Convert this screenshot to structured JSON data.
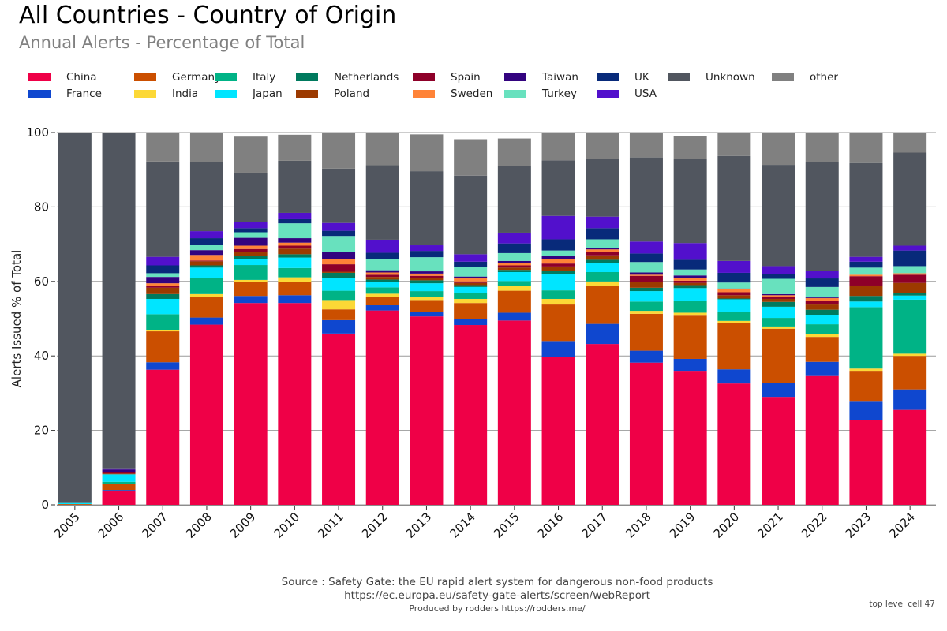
{
  "header": {
    "title": "All Countries - Country of Origin",
    "subtitle": "Annual Alerts - Percentage of Total"
  },
  "footer": {
    "source": "Source : Safety Gate: the EU rapid alert system for dangerous non-food products",
    "url": "https://ec.europa.eu/safety-gate-alerts/screen/webReport",
    "produced_by": "Produced by rodders https://rodders.me/",
    "cell_label": "top level cell 47"
  },
  "chart_data": {
    "type": "bar",
    "stacked": true,
    "title": "All Countries - Country of Origin",
    "subtitle": "Annual Alerts - Percentage of Total",
    "xlabel": "",
    "ylabel": "Alerts Issued % of Total",
    "ylim": [
      0,
      100
    ],
    "yticks": [
      "0",
      "20",
      "40",
      "60",
      "80",
      "100"
    ],
    "grid": true,
    "legend_position": "top",
    "categories": [
      "2005",
      "2006",
      "2007",
      "2008",
      "2009",
      "2010",
      "2011",
      "2012",
      "2013",
      "2014",
      "2015",
      "2016",
      "2017",
      "2018",
      "2019",
      "2020",
      "2021",
      "2022",
      "2023",
      "2024"
    ],
    "series": [
      {
        "name": "China",
        "color": "#ef0047",
        "values": [
          0,
          3.6,
          36.3,
          48.4,
          54.2,
          54.2,
          46.0,
          52.2,
          50.6,
          48.3,
          49.5,
          39.7,
          43.2,
          38.2,
          36.0,
          32.6,
          29.0,
          34.6,
          22.8,
          25.5
        ]
      },
      {
        "name": "France",
        "color": "#0f47cf",
        "values": [
          0,
          0.4,
          2.0,
          1.9,
          1.9,
          2.1,
          3.6,
          1.4,
          1.1,
          1.5,
          2.1,
          4.3,
          5.4,
          3.2,
          3.2,
          3.8,
          3.8,
          3.8,
          4.9,
          5.5
        ]
      },
      {
        "name": "Germany",
        "color": "#cb4f00",
        "values": [
          0.2,
          1.6,
          8.3,
          5.5,
          3.7,
          3.6,
          2.9,
          2.2,
          3.3,
          4.4,
          5.9,
          9.8,
          10.3,
          9.9,
          11.6,
          12.4,
          14.5,
          6.7,
          8.3,
          9.0
        ]
      },
      {
        "name": "India",
        "color": "#fcd836",
        "values": [
          0,
          0,
          0.3,
          0.8,
          0.6,
          1.2,
          2.5,
          0.9,
          0.9,
          1.1,
          1.3,
          1.5,
          1.1,
          0.8,
          0.8,
          0.6,
          0.6,
          0.8,
          0.6,
          0.6
        ]
      },
      {
        "name": "Italy",
        "color": "#00b386",
        "values": [
          0,
          0.6,
          4.3,
          4.3,
          4.0,
          2.5,
          2.5,
          1.7,
          1.5,
          1.6,
          1.3,
          2.3,
          2.5,
          2.5,
          3.2,
          2.3,
          2.3,
          2.6,
          16.5,
          14.5
        ]
      },
      {
        "name": "Japan",
        "color": "#00e5ff",
        "values": [
          0.3,
          2.0,
          4.1,
          2.8,
          1.7,
          2.8,
          3.5,
          1.5,
          2.1,
          1.6,
          2.4,
          4.4,
          2.4,
          2.8,
          3.4,
          3.5,
          3.0,
          2.5,
          1.5,
          1.1
        ]
      },
      {
        "name": "Netherlands",
        "color": "#007a5e",
        "values": [
          0,
          0,
          1.3,
          0.6,
          0.8,
          0.9,
          1.3,
          0.6,
          0.8,
          0.5,
          0.6,
          0.9,
          0.9,
          0.9,
          0.8,
          0.2,
          1.3,
          1.4,
          1.5,
          0.6
        ]
      },
      {
        "name": "Poland",
        "color": "#9c3a00",
        "values": [
          0,
          0.2,
          1.7,
          1.1,
          1.0,
          1.5,
          0.3,
          0.7,
          0.6,
          0.6,
          0.6,
          1.1,
          1.2,
          1.5,
          0.6,
          0.9,
          0.8,
          1.4,
          2.8,
          2.8
        ]
      },
      {
        "name": "Spain",
        "color": "#8e0029",
        "values": [
          0,
          0.3,
          0.6,
          0.2,
          0.8,
          0.8,
          2.0,
          0.6,
          0.6,
          0.4,
          0.6,
          0.8,
          1.0,
          1.7,
          0.6,
          0.8,
          0.6,
          1.0,
          2.5,
          2.2
        ]
      },
      {
        "name": "Sweden",
        "color": "#ff8337",
        "values": [
          0,
          0,
          0.6,
          1.5,
          0.9,
          0.8,
          1.5,
          0.6,
          0.6,
          0.8,
          0.6,
          1.1,
          0.6,
          0.3,
          0.8,
          0.8,
          0.4,
          0.7,
          0.4,
          0.4
        ]
      },
      {
        "name": "Taiwan",
        "color": "#33037f",
        "values": [
          0,
          0.8,
          1.7,
          1.3,
          2.1,
          1.2,
          1.9,
          0.6,
          0.6,
          0.5,
          0.6,
          1.0,
          0.4,
          0.6,
          0.6,
          0.2,
          0.3,
          0.2,
          0,
          0
        ]
      },
      {
        "name": "Turkey",
        "color": "#68e1be",
        "values": [
          0,
          0,
          1.0,
          1.5,
          1.5,
          4.0,
          4.2,
          3.0,
          3.8,
          2.5,
          2.1,
          1.4,
          2.3,
          2.8,
          1.6,
          1.6,
          4.1,
          2.8,
          1.9,
          1.9
        ]
      },
      {
        "name": "UK",
        "color": "#082a7a",
        "values": [
          0,
          0,
          2.1,
          1.7,
          1.1,
          1.1,
          1.4,
          1.7,
          1.7,
          1.5,
          2.6,
          3.0,
          3.0,
          2.3,
          2.6,
          2.6,
          1.3,
          2.3,
          1.6,
          4.2
        ]
      },
      {
        "name": "USA",
        "color": "#5210cc",
        "values": [
          0,
          0.3,
          2.3,
          1.9,
          1.7,
          1.7,
          2.1,
          3.5,
          1.5,
          2.0,
          2.9,
          6.3,
          3.1,
          3.2,
          4.5,
          3.2,
          2.1,
          2.1,
          1.3,
          1.3
        ]
      },
      {
        "name": "Unknown",
        "color": "#51565f",
        "values": [
          99.5,
          90.0,
          25.6,
          18.6,
          13.2,
          14.0,
          14.6,
          20.0,
          19.9,
          21.1,
          18.0,
          14.9,
          15.5,
          22.6,
          22.6,
          28.2,
          27.2,
          29.2,
          25.2,
          25.0
        ]
      },
      {
        "name": "other",
        "color": "#808080",
        "values": [
          0,
          0.2,
          8.1,
          8.1,
          9.7,
          7.0,
          9.7,
          8.6,
          9.9,
          9.8,
          7.3,
          8.0,
          7.1,
          6.9,
          6.1,
          6.3,
          8.7,
          8.1,
          8.3,
          5.3
        ]
      }
    ]
  }
}
